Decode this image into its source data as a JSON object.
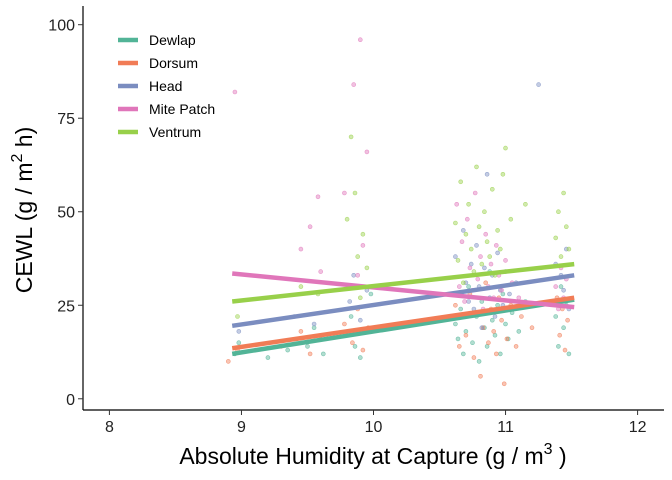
{
  "chart_data": {
    "type": "scatter",
    "title": "",
    "xlabel": {
      "main": "Absolute Humidity at Capture (g / m",
      "sup": "3",
      "tail": " )"
    },
    "ylabel": {
      "main": "CEWL (g / m",
      "sup": "2",
      "tail": " h)"
    },
    "xlim": [
      7.8,
      12.2
    ],
    "ylim": [
      -3,
      105
    ],
    "x_ticks": [
      8,
      9,
      10,
      11,
      12
    ],
    "y_ticks": [
      0,
      25,
      50,
      75,
      100
    ],
    "grid": false,
    "legend_position": "top-left",
    "series": [
      {
        "name": "Dewlap",
        "color": "#52b497",
        "fit": {
          "x": [
            8.93,
            11.52
          ],
          "y": [
            12,
            26.5
          ]
        },
        "points": [
          [
            8.95,
            12
          ],
          [
            8.98,
            15
          ],
          [
            9.2,
            11
          ],
          [
            9.35,
            13
          ],
          [
            9.42,
            16
          ],
          [
            9.5,
            14
          ],
          [
            9.55,
            19
          ],
          [
            9.62,
            12
          ],
          [
            9.8,
            17
          ],
          [
            9.83,
            22
          ],
          [
            9.86,
            14
          ],
          [
            9.9,
            11
          ],
          [
            9.94,
            18
          ],
          [
            9.98,
            28
          ],
          [
            10.62,
            20
          ],
          [
            10.64,
            16
          ],
          [
            10.66,
            24
          ],
          [
            10.68,
            12
          ],
          [
            10.7,
            18
          ],
          [
            10.72,
            30
          ],
          [
            10.75,
            15
          ],
          [
            10.78,
            22
          ],
          [
            10.8,
            10
          ],
          [
            10.82,
            26
          ],
          [
            10.84,
            19
          ],
          [
            10.86,
            14
          ],
          [
            10.88,
            34
          ],
          [
            10.9,
            21
          ],
          [
            10.92,
            17
          ],
          [
            10.94,
            25
          ],
          [
            10.96,
            12
          ],
          [
            10.98,
            28
          ],
          [
            11.0,
            20
          ],
          [
            11.02,
            16
          ],
          [
            11.05,
            23
          ],
          [
            11.1,
            18
          ],
          [
            11.15,
            26
          ],
          [
            11.38,
            22
          ],
          [
            11.4,
            14
          ],
          [
            11.42,
            30
          ],
          [
            11.44,
            19
          ],
          [
            11.46,
            25
          ],
          [
            11.48,
            12
          ]
        ]
      },
      {
        "name": "Dorsum",
        "color": "#f17c56",
        "fit": {
          "x": [
            8.93,
            11.52
          ],
          "y": [
            13.5,
            27
          ]
        },
        "points": [
          [
            8.9,
            10
          ],
          [
            8.97,
            13
          ],
          [
            9.3,
            14
          ],
          [
            9.45,
            18
          ],
          [
            9.52,
            12
          ],
          [
            9.6,
            16
          ],
          [
            9.78,
            20
          ],
          [
            9.84,
            15
          ],
          [
            9.88,
            24
          ],
          [
            9.92,
            13
          ],
          [
            9.96,
            19
          ],
          [
            10.62,
            25
          ],
          [
            10.65,
            14
          ],
          [
            10.67,
            22
          ],
          [
            10.7,
            17
          ],
          [
            10.73,
            28
          ],
          [
            10.76,
            11
          ],
          [
            10.79,
            23
          ],
          [
            10.81,
            6
          ],
          [
            10.83,
            19
          ],
          [
            10.85,
            31
          ],
          [
            10.87,
            15
          ],
          [
            10.89,
            24
          ],
          [
            10.91,
            18
          ],
          [
            10.93,
            12
          ],
          [
            10.95,
            27
          ],
          [
            10.97,
            21
          ],
          [
            10.99,
            4
          ],
          [
            11.01,
            16
          ],
          [
            11.04,
            25
          ],
          [
            11.08,
            14
          ],
          [
            11.12,
            22
          ],
          [
            11.2,
            19
          ],
          [
            11.39,
            27
          ],
          [
            11.41,
            17
          ],
          [
            11.43,
            24
          ],
          [
            11.45,
            13
          ],
          [
            11.47,
            21
          ]
        ]
      },
      {
        "name": "Head",
        "color": "#7b8dc0",
        "fit": {
          "x": [
            8.93,
            11.52
          ],
          "y": [
            19.5,
            33
          ]
        },
        "points": [
          [
            8.98,
            18
          ],
          [
            9.4,
            22
          ],
          [
            9.55,
            20
          ],
          [
            9.82,
            26
          ],
          [
            9.85,
            33
          ],
          [
            9.9,
            21
          ],
          [
            9.95,
            29
          ],
          [
            10.62,
            38
          ],
          [
            10.64,
            28
          ],
          [
            10.66,
            22
          ],
          [
            10.68,
            45
          ],
          [
            10.7,
            31
          ],
          [
            10.72,
            26
          ],
          [
            10.74,
            36
          ],
          [
            10.76,
            24
          ],
          [
            10.78,
            41
          ],
          [
            10.8,
            30
          ],
          [
            10.82,
            19
          ],
          [
            10.84,
            35
          ],
          [
            10.86,
            60
          ],
          [
            10.88,
            27
          ],
          [
            10.9,
            33
          ],
          [
            10.92,
            22
          ],
          [
            10.94,
            39
          ],
          [
            10.96,
            29
          ],
          [
            10.98,
            25
          ],
          [
            11.0,
            34
          ],
          [
            11.03,
            28
          ],
          [
            11.08,
            31
          ],
          [
            11.25,
            84
          ],
          [
            11.38,
            36
          ],
          [
            11.4,
            26
          ],
          [
            11.42,
            33
          ],
          [
            11.44,
            29
          ],
          [
            11.46,
            40
          ],
          [
            11.48,
            24
          ]
        ]
      },
      {
        "name": "Mite Patch",
        "color": "#e076ba",
        "fit": {
          "x": [
            8.93,
            11.52
          ],
          "y": [
            33.5,
            24.5
          ]
        },
        "points": [
          [
            8.95,
            82
          ],
          [
            9.45,
            40
          ],
          [
            9.52,
            46
          ],
          [
            9.58,
            54
          ],
          [
            9.6,
            34
          ],
          [
            9.78,
            55
          ],
          [
            9.83,
            30
          ],
          [
            9.85,
            84
          ],
          [
            9.88,
            33
          ],
          [
            9.9,
            96
          ],
          [
            9.92,
            41
          ],
          [
            9.95,
            66
          ],
          [
            10.63,
            52
          ],
          [
            10.65,
            30
          ],
          [
            10.67,
            42
          ],
          [
            10.69,
            26
          ],
          [
            10.71,
            48
          ],
          [
            10.73,
            35
          ],
          [
            10.75,
            29
          ],
          [
            10.77,
            55
          ],
          [
            10.79,
            32
          ],
          [
            10.81,
            38
          ],
          [
            10.83,
            24
          ],
          [
            10.85,
            44
          ],
          [
            10.87,
            30
          ],
          [
            10.89,
            36
          ],
          [
            10.91,
            27
          ],
          [
            10.93,
            41
          ],
          [
            10.95,
            33
          ],
          [
            10.97,
            29
          ],
          [
            11.0,
            37
          ],
          [
            11.05,
            31
          ],
          [
            11.1,
            27
          ],
          [
            11.38,
            30
          ],
          [
            11.4,
            24
          ],
          [
            11.42,
            35
          ],
          [
            11.44,
            27
          ],
          [
            11.46,
            32
          ]
        ]
      },
      {
        "name": "Ventrum",
        "color": "#98d04a",
        "fit": {
          "x": [
            8.93,
            11.52
          ],
          "y": [
            26,
            36
          ]
        },
        "points": [
          [
            8.97,
            22
          ],
          [
            9.45,
            30
          ],
          [
            9.58,
            28
          ],
          [
            9.8,
            48
          ],
          [
            9.83,
            70
          ],
          [
            9.86,
            55
          ],
          [
            9.88,
            38
          ],
          [
            9.9,
            27
          ],
          [
            9.92,
            44
          ],
          [
            9.95,
            35
          ],
          [
            10.62,
            47
          ],
          [
            10.64,
            37
          ],
          [
            10.66,
            58
          ],
          [
            10.68,
            31
          ],
          [
            10.7,
            44
          ],
          [
            10.72,
            52
          ],
          [
            10.74,
            40
          ],
          [
            10.76,
            34
          ],
          [
            10.78,
            62
          ],
          [
            10.8,
            46
          ],
          [
            10.82,
            36
          ],
          [
            10.84,
            50
          ],
          [
            10.86,
            42
          ],
          [
            10.88,
            38
          ],
          [
            10.9,
            56
          ],
          [
            10.92,
            33
          ],
          [
            10.94,
            45
          ],
          [
            10.96,
            40
          ],
          [
            10.98,
            60
          ],
          [
            11.0,
            67
          ],
          [
            11.04,
            48
          ],
          [
            11.15,
            52
          ],
          [
            11.38,
            43
          ],
          [
            11.4,
            50
          ],
          [
            11.42,
            38
          ],
          [
            11.44,
            55
          ],
          [
            11.46,
            46
          ],
          [
            11.48,
            40
          ]
        ]
      }
    ]
  }
}
